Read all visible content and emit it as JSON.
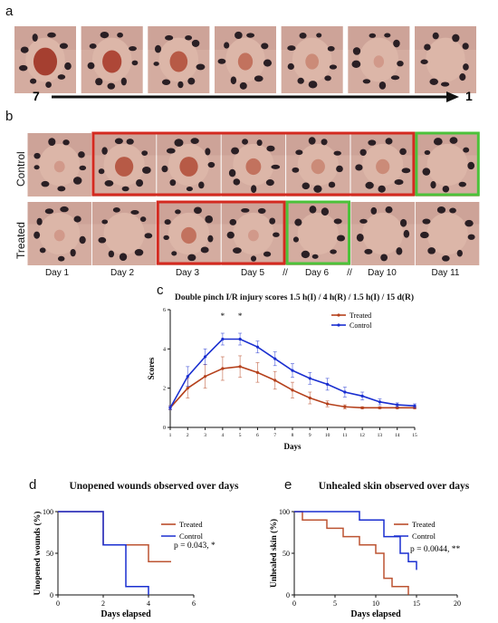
{
  "panel_labels": {
    "a": "a",
    "b": "b",
    "c": "c",
    "d": "d",
    "e": "e"
  },
  "panel_a": {
    "scale_start": "7",
    "scale_end": "1",
    "photos": [
      {
        "wound": "large-dark"
      },
      {
        "wound": "medium-dark"
      },
      {
        "wound": "medium"
      },
      {
        "wound": "small"
      },
      {
        "wound": "faint"
      },
      {
        "wound": "trace"
      },
      {
        "wound": "none"
      }
    ]
  },
  "panel_b": {
    "row_labels": [
      "Control",
      "Treated"
    ],
    "day_labels": [
      "Day 1",
      "Day 2",
      "Day 3",
      "Day 5",
      "//",
      "Day 6",
      "//",
      "Day 10",
      "Day 11"
    ],
    "colors": {
      "open_frame": "#d42a20",
      "healed_frame": "#4cc23a"
    }
  },
  "chart_data": [
    {
      "type": "line",
      "title": "Double pinch I/R injury scores 1.5 h(I) / 4 h(R) / 1.5 h(I) / 15 d(R)",
      "xlabel": "Days",
      "ylabel": "Scores",
      "xlim": [
        1,
        15
      ],
      "ylim": [
        0,
        6
      ],
      "x": [
        1,
        2,
        3,
        4,
        5,
        6,
        7,
        8,
        9,
        10,
        11,
        12,
        13,
        14,
        15
      ],
      "yticks": [
        0,
        2,
        4,
        6
      ],
      "significance_marks": [
        {
          "x": 4,
          "label": "*"
        },
        {
          "x": 5,
          "label": "*"
        }
      ],
      "legend_position": "top-right",
      "series": [
        {
          "name": "Treated",
          "color": "#b5411c",
          "values": [
            1.0,
            2.0,
            2.6,
            3.0,
            3.1,
            2.8,
            2.4,
            1.9,
            1.5,
            1.2,
            1.05,
            1.0,
            1.0,
            1.0,
            1.0
          ],
          "err": [
            0.1,
            0.5,
            0.6,
            0.6,
            0.55,
            0.5,
            0.45,
            0.4,
            0.3,
            0.15,
            0.1,
            0.05,
            0.05,
            0.05,
            0.05
          ]
        },
        {
          "name": "Control",
          "color": "#1a2fd0",
          "values": [
            1.0,
            2.6,
            3.6,
            4.5,
            4.5,
            4.1,
            3.5,
            2.9,
            2.5,
            2.2,
            1.8,
            1.6,
            1.3,
            1.15,
            1.1
          ],
          "err": [
            0.1,
            0.5,
            0.4,
            0.3,
            0.3,
            0.3,
            0.35,
            0.35,
            0.3,
            0.3,
            0.25,
            0.2,
            0.15,
            0.1,
            0.1
          ]
        }
      ]
    },
    {
      "type": "line",
      "title": "Unopened wounds observed over days",
      "xlabel": "Days elapsed",
      "ylabel": "Unopened wounds (%)",
      "xlim": [
        0,
        6
      ],
      "ylim": [
        0,
        100
      ],
      "xticks": [
        0,
        2,
        4,
        6
      ],
      "yticks": [
        0,
        50,
        100
      ],
      "annotation": "p = 0.043, *",
      "legend_position": "top-right",
      "series": [
        {
          "name": "Treated",
          "color": "#b5411c",
          "steps": [
            [
              0,
              100
            ],
            [
              2,
              100
            ],
            [
              2,
              60
            ],
            [
              4,
              60
            ],
            [
              4,
              40
            ],
            [
              5,
              40
            ]
          ]
        },
        {
          "name": "Control",
          "color": "#1a2fd0",
          "steps": [
            [
              0,
              100
            ],
            [
              2,
              100
            ],
            [
              2,
              60
            ],
            [
              3,
              60
            ],
            [
              3,
              10
            ],
            [
              4,
              10
            ],
            [
              4,
              0
            ]
          ]
        }
      ]
    },
    {
      "type": "line",
      "title": "Unhealed skin observed over days",
      "xlabel": "Days elapsed",
      "ylabel": "Unhealed skin (%)",
      "xlim": [
        0,
        20
      ],
      "ylim": [
        0,
        100
      ],
      "xticks": [
        0,
        5,
        10,
        15,
        20
      ],
      "yticks": [
        0,
        50,
        100
      ],
      "annotation": "p = 0.0044, **",
      "legend_position": "top-right",
      "series": [
        {
          "name": "Treated",
          "color": "#b5411c",
          "steps": [
            [
              0,
              100
            ],
            [
              1,
              100
            ],
            [
              1,
              90
            ],
            [
              4,
              90
            ],
            [
              4,
              80
            ],
            [
              6,
              80
            ],
            [
              6,
              70
            ],
            [
              8,
              70
            ],
            [
              8,
              60
            ],
            [
              10,
              60
            ],
            [
              10,
              50
            ],
            [
              11,
              50
            ],
            [
              11,
              20
            ],
            [
              12,
              20
            ],
            [
              12,
              10
            ],
            [
              14,
              10
            ],
            [
              14,
              0
            ]
          ]
        },
        {
          "name": "Control",
          "color": "#1a2fd0",
          "steps": [
            [
              0,
              100
            ],
            [
              8,
              100
            ],
            [
              8,
              90
            ],
            [
              11,
              90
            ],
            [
              11,
              70
            ],
            [
              13,
              70
            ],
            [
              13,
              50
            ],
            [
              14,
              50
            ],
            [
              14,
              40
            ],
            [
              15,
              40
            ],
            [
              15,
              30
            ]
          ]
        }
      ]
    }
  ]
}
